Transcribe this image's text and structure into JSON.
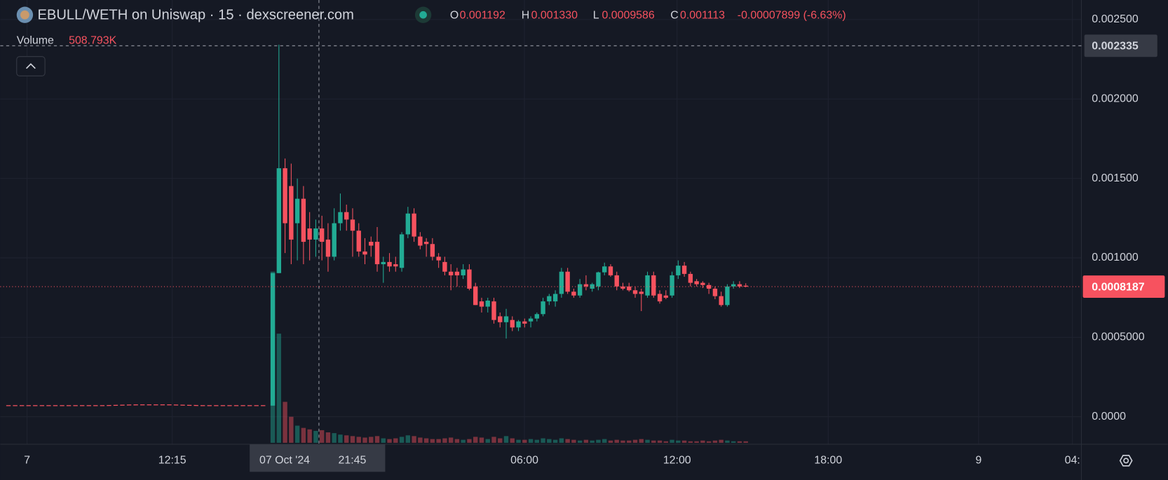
{
  "header": {
    "title": "EBULL/WETH on Uniswap · 15 · dexscreener.com",
    "ohlc": [
      {
        "label": "O",
        "value": "0.001192"
      },
      {
        "label": "H",
        "value": "0.001330"
      },
      {
        "label": "L",
        "value": "0.0009586"
      },
      {
        "label": "C",
        "value": "0.001113"
      }
    ],
    "change": "-0.00007899 (-6.63%)"
  },
  "volume_legend": {
    "label": "Volume",
    "value": "508.793K"
  },
  "chart_data": {
    "type": "candlestick",
    "up_color": "#22ab94",
    "down_color": "#f7525f",
    "ylim": [
      -0.000164,
      0.002623
    ],
    "yticks": [
      {
        "value": 0,
        "label": "0.0000"
      },
      {
        "value": 0.0005,
        "label": "0.0005000"
      },
      {
        "value": 0.001,
        "label": "0.001000"
      },
      {
        "value": 0.0015,
        "label": "0.001500"
      },
      {
        "value": 0.002,
        "label": "0.002000"
      },
      {
        "value": 0.0025,
        "label": "0.002500"
      }
    ],
    "grid": true,
    "x_labels": [
      "7",
      "12:15",
      "06:00",
      "12:00",
      "18:00",
      "9",
      "04:"
    ],
    "crosshair": {
      "price": 0.002335,
      "date": "07 Oct '24",
      "time": "21:45"
    },
    "last_price": 0.0008187,
    "pre_launch": [
      7e-05,
      7e-05,
      7e-05,
      7e-05,
      7.5e-05,
      7.5e-05,
      7e-05,
      7e-05,
      7e-05
    ],
    "open": [
      7e-05,
      0.000904,
      0.001564,
      0.001452,
      0.001218,
      0.001372,
      0.001185,
      0.001115,
      0.001185,
      0.001115,
      0.001007,
      0.001218,
      0.001288,
      0.001241,
      0.001171,
      0.00104,
      0.001101,
      0.001101,
      0.00096,
      0.000974,
      0.00096,
      0.000937,
      0.001148,
      0.001279,
      0.001134,
      0.001101,
      0.001087,
      0.001007,
      0.000974,
      0.000913,
      0.000913,
      0.00089,
      0.000927,
      0.00082,
      0.000726,
      0.000693,
      0.000726,
      0.000632,
      0.000595,
      0.000609,
      0.000562,
      0.0006,
      0.0006,
      0.000618,
      0.000646,
      0.000726,
      0.000726,
      0.000773,
      0.000913,
      0.000787,
      0.000763,
      0.000834,
      0.000806,
      0.00082,
      0.000909,
      0.000946,
      0.00089,
      0.00082,
      0.00082,
      0.000796,
      0.000787,
      0.000763,
      0.00089,
      0.000773,
      0.000763,
      0.000763,
      0.00089,
      0.000951,
      0.000899,
      0.000853,
      0.000843,
      0.000829,
      0.000806,
      0.000759,
      0.000703,
      0.00082,
      0.000834,
      0.000825
    ],
    "high": [
      0.000904,
      0.002342,
      0.001625,
      0.001593,
      0.001499,
      0.001452,
      0.001288,
      0.001241,
      0.001265,
      0.001218,
      0.001312,
      0.001405,
      0.001335,
      0.001312,
      0.001218,
      0.001124,
      0.001134,
      0.001194,
      0.001007,
      0.00103,
      0.001007,
      0.001162,
      0.001321,
      0.001312,
      0.001162,
      0.001124,
      0.001124,
      0.00103,
      0.001007,
      0.00096,
      0.000937,
      0.00096,
      0.00096,
      0.000843,
      0.000749,
      0.000749,
      0.000749,
      0.000656,
      0.000679,
      0.000632,
      0.000609,
      0.000618,
      0.000632,
      0.000656,
      0.000749,
      0.000773,
      0.000796,
      0.000937,
      0.000937,
      0.000806,
      0.000867,
      0.00089,
      0.000843,
      0.000913,
      0.00097,
      0.00096,
      0.000913,
      0.000843,
      0.000843,
      0.00082,
      0.000806,
      0.000913,
      0.000913,
      0.000796,
      0.000796,
      0.000913,
      0.000984,
      0.000974,
      0.000913,
      0.000867,
      0.000853,
      0.000843,
      0.00082,
      0.000787,
      0.000834,
      0.000853,
      0.000853,
      0.00084
    ],
    "low": [
      7e-05,
      0.000904,
      0.00103,
      0.00096,
      0.000984,
      0.00096,
      0.000984,
      0.001007,
      0.000984,
      0.000913,
      0.000984,
      0.001171,
      0.001171,
      0.001007,
      0.001007,
      0.00096,
      0.001007,
      0.000913,
      0.000843,
      0.000913,
      0.000913,
      0.000913,
      0.001124,
      0.001101,
      0.001054,
      0.001007,
      0.000984,
      0.000937,
      0.00089,
      0.000796,
      0.00082,
      0.000867,
      0.000796,
      0.000703,
      0.000656,
      0.000656,
      0.000586,
      0.000562,
      0.000492,
      0.000539,
      0.000539,
      0.000562,
      0.000562,
      0.0006,
      0.000632,
      0.000703,
      0.000693,
      0.000749,
      0.000773,
      0.000749,
      0.000749,
      0.000796,
      0.000787,
      0.000796,
      0.00089,
      0.000881,
      0.000796,
      0.000796,
      0.000787,
      0.000749,
      0.000665,
      0.000749,
      0.000749,
      0.000712,
      0.00074,
      0.000749,
      0.000867,
      0.000881,
      0.00082,
      0.00082,
      0.00081,
      0.000773,
      0.00074,
      0.000693,
      0.000693,
      0.000806,
      0.00081,
      0.000815
    ],
    "close": [
      0.000904,
      0.001564,
      0.001218,
      0.001115,
      0.001372,
      0.001101,
      0.001115,
      0.001185,
      0.001101,
      0.001007,
      0.001218,
      0.001288,
      0.001241,
      0.001171,
      0.00104,
      0.001021,
      0.001077,
      0.00096,
      0.000974,
      0.000946,
      0.000946,
      0.001148,
      0.001279,
      0.001134,
      0.001077,
      0.001087,
      0.001007,
      0.000984,
      0.000913,
      0.00089,
      0.00089,
      0.000927,
      0.000806,
      0.000703,
      0.000693,
      0.000731,
      0.000609,
      0.000595,
      0.000632,
      0.000562,
      0.0006,
      0.000586,
      0.000618,
      0.000646,
      0.000726,
      0.000759,
      0.000773,
      0.000913,
      0.000787,
      0.000763,
      0.000834,
      0.00082,
      0.000834,
      0.000909,
      0.000946,
      0.00089,
      0.00082,
      0.000806,
      0.000796,
      0.000773,
      0.000773,
      0.00089,
      0.000763,
      0.000726,
      0.000749,
      0.00089,
      0.000951,
      0.000899,
      0.000843,
      0.000834,
      0.000829,
      0.000806,
      0.000759,
      0.000703,
      0.00082,
      0.000834,
      0.00082,
      0.0008187
    ],
    "volume": [
      6900000,
      4400000,
      1650000,
      1050000,
      690000,
      600000,
      540000,
      480000,
      508793,
      420000,
      390000,
      330000,
      300000,
      270000,
      240000,
      210000,
      240000,
      270000,
      180000,
      150000,
      180000,
      240000,
      300000,
      270000,
      210000,
      180000,
      150000,
      150000,
      180000,
      210000,
      150000,
      120000,
      150000,
      240000,
      210000,
      150000,
      240000,
      180000,
      270000,
      180000,
      120000,
      120000,
      150000,
      120000,
      180000,
      150000,
      120000,
      180000,
      150000,
      120000,
      90000,
      120000,
      90000,
      120000,
      150000,
      90000,
      120000,
      90000,
      90000,
      120000,
      150000,
      120000,
      90000,
      90000,
      60000,
      120000,
      90000,
      90000,
      60000,
      60000,
      90000,
      60000,
      90000,
      120000,
      90000,
      60000,
      60000,
      60000
    ]
  }
}
